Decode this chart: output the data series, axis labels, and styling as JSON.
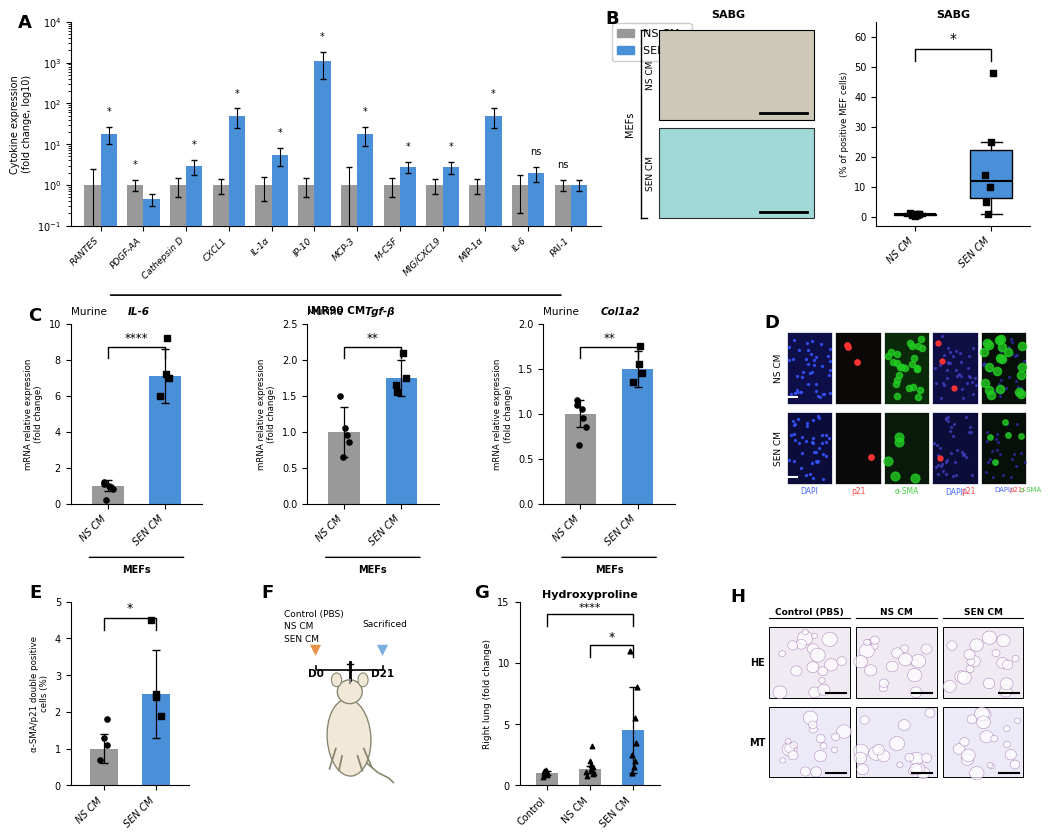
{
  "panel_A": {
    "categories": [
      "RANTES",
      "PDGF-AA",
      "Cathepsin D",
      "CXCL1",
      "IL-1α",
      "IP-10",
      "MCP-3",
      "M-CSF",
      "MIG/CXCL9",
      "MIP-1α",
      "IL-6",
      "PAI-1"
    ],
    "ns_cm_values": [
      1.0,
      1.0,
      1.0,
      1.0,
      1.0,
      1.0,
      1.0,
      1.0,
      1.0,
      1.0,
      1.0,
      1.0
    ],
    "sen_cm_values": [
      18.0,
      0.45,
      3.0,
      50.0,
      5.5,
      1100.0,
      18.0,
      2.8,
      2.8,
      50.0,
      2.0,
      1.0
    ],
    "ns_cm_err": [
      1.5,
      0.3,
      0.5,
      0.4,
      0.6,
      0.5,
      1.8,
      0.5,
      0.4,
      0.4,
      0.8,
      0.3
    ],
    "sen_cm_err": [
      8.0,
      0.15,
      1.2,
      25.0,
      2.5,
      700.0,
      9.0,
      0.8,
      0.9,
      25.0,
      0.8,
      0.3
    ],
    "sig_labels": [
      "*",
      "*",
      "*",
      "*",
      "*",
      "*",
      "*",
      "*",
      "*",
      "*",
      "ns",
      "ns"
    ],
    "ylabel": "Cytokine expression\n(fold change, log10)",
    "ns_color": "#999999",
    "sen_color": "#4A90D9"
  },
  "panel_B": {
    "ns_sabg": [
      0.3,
      0.5,
      0.7,
      0.8,
      0.9,
      1.0,
      1.1
    ],
    "sen_sabg": [
      1.0,
      5.0,
      10.0,
      14.0,
      25.0,
      48.0
    ],
    "ns_img_color": "#d8cfc0",
    "sen_img_color": "#a8d8d8",
    "ylabel": "(% of positive MEF cells)",
    "yticks": [
      0,
      10,
      20,
      30,
      40,
      50,
      60
    ]
  },
  "panel_C_IL6": {
    "title_plain": "Murine ",
    "title_italic": "IL-6",
    "ns_cm_value": 1.0,
    "sen_cm_value": 7.1,
    "ns_cm_err": 0.3,
    "sen_cm_err": 1.5,
    "ns_dots": [
      0.2,
      0.8,
      0.9,
      1.0,
      1.1,
      1.2
    ],
    "sen_dots": [
      6.0,
      7.0,
      7.2,
      9.2
    ],
    "ylabel": "mRNA relative expression\n(fold change)",
    "sig": "****",
    "ylim": [
      0,
      10
    ],
    "yticks": [
      0,
      2,
      4,
      6,
      8,
      10
    ]
  },
  "panel_C_Tgfb": {
    "title_plain": "Murine ",
    "title_italic": "Tgf-β",
    "ns_cm_value": 1.0,
    "sen_cm_value": 1.75,
    "ns_cm_err": 0.35,
    "sen_cm_err": 0.25,
    "ns_dots": [
      0.65,
      0.85,
      0.95,
      1.05,
      1.5
    ],
    "sen_dots": [
      1.55,
      1.65,
      1.75,
      2.1
    ],
    "ylabel": "mRNA relative expression\n(fold change)",
    "sig": "**",
    "ylim": [
      0,
      2.5
    ],
    "yticks": [
      0.0,
      0.5,
      1.0,
      1.5,
      2.0,
      2.5
    ]
  },
  "panel_C_Col1a2": {
    "title_plain": "Murine ",
    "title_italic": "Col1a2",
    "ns_cm_value": 1.0,
    "sen_cm_value": 1.5,
    "ns_cm_err": 0.15,
    "sen_cm_err": 0.2,
    "ns_dots": [
      0.65,
      0.85,
      0.95,
      1.05,
      1.1,
      1.15
    ],
    "sen_dots": [
      1.35,
      1.45,
      1.55,
      1.75
    ],
    "ylabel": "mRNA relative expression\n(fold change)",
    "sig": "**",
    "ylim": [
      0,
      2.0
    ],
    "yticks": [
      0.0,
      0.5,
      1.0,
      1.5,
      2.0
    ]
  },
  "panel_D": {
    "col_labels": [
      "DAPI",
      "p21",
      "α-SMA",
      "DAPI/p21",
      "DAPI/p21/α-SMA"
    ],
    "col_label_colors": [
      "#4466ff",
      "#ff4444",
      "#44cc44",
      "#4466ff",
      "#4466ff"
    ],
    "col_label_colors2": [
      null,
      null,
      null,
      null,
      "#44cc44"
    ],
    "row_labels": [
      "NS CM",
      "SEN CM"
    ],
    "bg_colors_ns": [
      "#0a0a3a",
      "#080808",
      "#081a08",
      "#0a0a3a",
      "#080a08"
    ],
    "bg_colors_sen": [
      "#0a0a4a",
      "#100808",
      "#082808",
      "#0a0a4a",
      "#0a1a08"
    ]
  },
  "panel_E": {
    "ns_cm_value": 1.0,
    "sen_cm_value": 2.5,
    "ns_cm_err": 0.4,
    "sen_cm_err": 1.2,
    "ns_dots": [
      0.7,
      1.1,
      1.3,
      1.8
    ],
    "sen_dots": [
      1.9,
      2.4,
      2.5,
      4.5
    ],
    "ylabel": "α-SMA/p21 double positive\ncells (%)",
    "sig": "*",
    "ylim": [
      0,
      5
    ],
    "yticks": [
      0,
      1,
      2,
      3,
      4,
      5
    ]
  },
  "panel_G": {
    "title": "Hydroxyproline",
    "control_value": 1.0,
    "ns_cm_value": 1.3,
    "sen_cm_value": 4.5,
    "control_err": 0.15,
    "ns_cm_err": 0.3,
    "sen_cm_err": 3.5,
    "control_dots": [
      0.7,
      0.85,
      0.9,
      0.95,
      1.0,
      1.05,
      1.1,
      1.15,
      1.2,
      1.25
    ],
    "ns_cm_dots": [
      0.8,
      0.9,
      1.0,
      1.1,
      1.2,
      1.3,
      1.5,
      1.7,
      2.0,
      3.2
    ],
    "sen_cm_dots": [
      1.0,
      1.5,
      2.0,
      2.5,
      3.5,
      5.5,
      8.0,
      11.0
    ],
    "ylabel": "Right lung (fold change)",
    "ylim": [
      0,
      15
    ],
    "yticks": [
      0,
      5,
      10,
      15
    ]
  },
  "panel_H": {
    "col_labels": [
      "Control (PBS)",
      "NS CM",
      "SEN CM"
    ],
    "row_labels": [
      "HE",
      "MT"
    ],
    "he_color": "#f0e8f0",
    "mt_color": "#ece8f5"
  },
  "colors": {
    "ns_cm": "#999999",
    "sen_cm": "#4A90D9",
    "control": "#999999",
    "orange_arrow": "#E8924A",
    "blue_arrow": "#7AAFE0"
  }
}
